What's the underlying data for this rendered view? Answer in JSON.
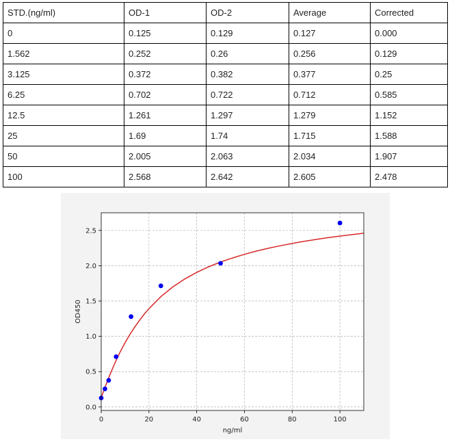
{
  "table": {
    "headers": [
      "STD.(ng/ml)",
      "OD-1",
      "OD-2",
      "Average",
      "Corrected"
    ],
    "rows": [
      [
        "0",
        "0.125",
        "0.129",
        "0.127",
        "0.000"
      ],
      [
        "1.562",
        "0.252",
        "0.26",
        "0.256",
        "0.129"
      ],
      [
        "3.125",
        "0.372",
        "0.382",
        "0.377",
        "0.25"
      ],
      [
        "6.25",
        "0.702",
        "0.722",
        "0.712",
        "0.585"
      ],
      [
        "12.5",
        "1.261",
        "1.297",
        "1.279",
        "1.152"
      ],
      [
        "25",
        "1.69",
        "1.74",
        "1.715",
        "1.588"
      ],
      [
        "50",
        "2.005",
        "2.063",
        "2.034",
        "1.907"
      ],
      [
        "100",
        "2.568",
        "2.642",
        "2.605",
        "2.478"
      ]
    ]
  },
  "chart_data": {
    "type": "scatter",
    "xlabel": "ng/ml",
    "ylabel": "OD450",
    "xlim": [
      0,
      110
    ],
    "ylim": [
      -0.05,
      2.75
    ],
    "xticks": [
      0,
      20,
      40,
      60,
      80,
      100
    ],
    "yticks": [
      "0.0",
      "0.5",
      "1.0",
      "1.5",
      "2.0",
      "2.5"
    ],
    "grid": true,
    "points": {
      "x": [
        0,
        1.562,
        3.125,
        6.25,
        12.5,
        25,
        50,
        100
      ],
      "y": [
        0.127,
        0.256,
        0.377,
        0.712,
        1.279,
        1.715,
        2.034,
        2.605
      ]
    },
    "fit_curve": {
      "x": [
        0,
        1,
        2,
        3,
        4,
        5,
        6,
        8,
        10,
        12,
        14,
        16,
        18,
        20,
        25,
        30,
        35,
        40,
        45,
        50,
        55,
        60,
        65,
        70,
        75,
        80,
        85,
        90,
        95,
        100,
        105,
        110
      ],
      "y": [
        0.13,
        0.225,
        0.315,
        0.402,
        0.485,
        0.565,
        0.64,
        0.782,
        0.91,
        1.025,
        1.13,
        1.225,
        1.312,
        1.392,
        1.562,
        1.7,
        1.812,
        1.905,
        1.985,
        2.052,
        2.11,
        2.162,
        2.207,
        2.247,
        2.283,
        2.315,
        2.345,
        2.372,
        2.397,
        2.42,
        2.44,
        2.46
      ]
    },
    "colors": {
      "points": "#0000ee",
      "fit_curve": "#d62728",
      "grid": "#b0b0b0",
      "panel": "#f3f3f3"
    }
  }
}
